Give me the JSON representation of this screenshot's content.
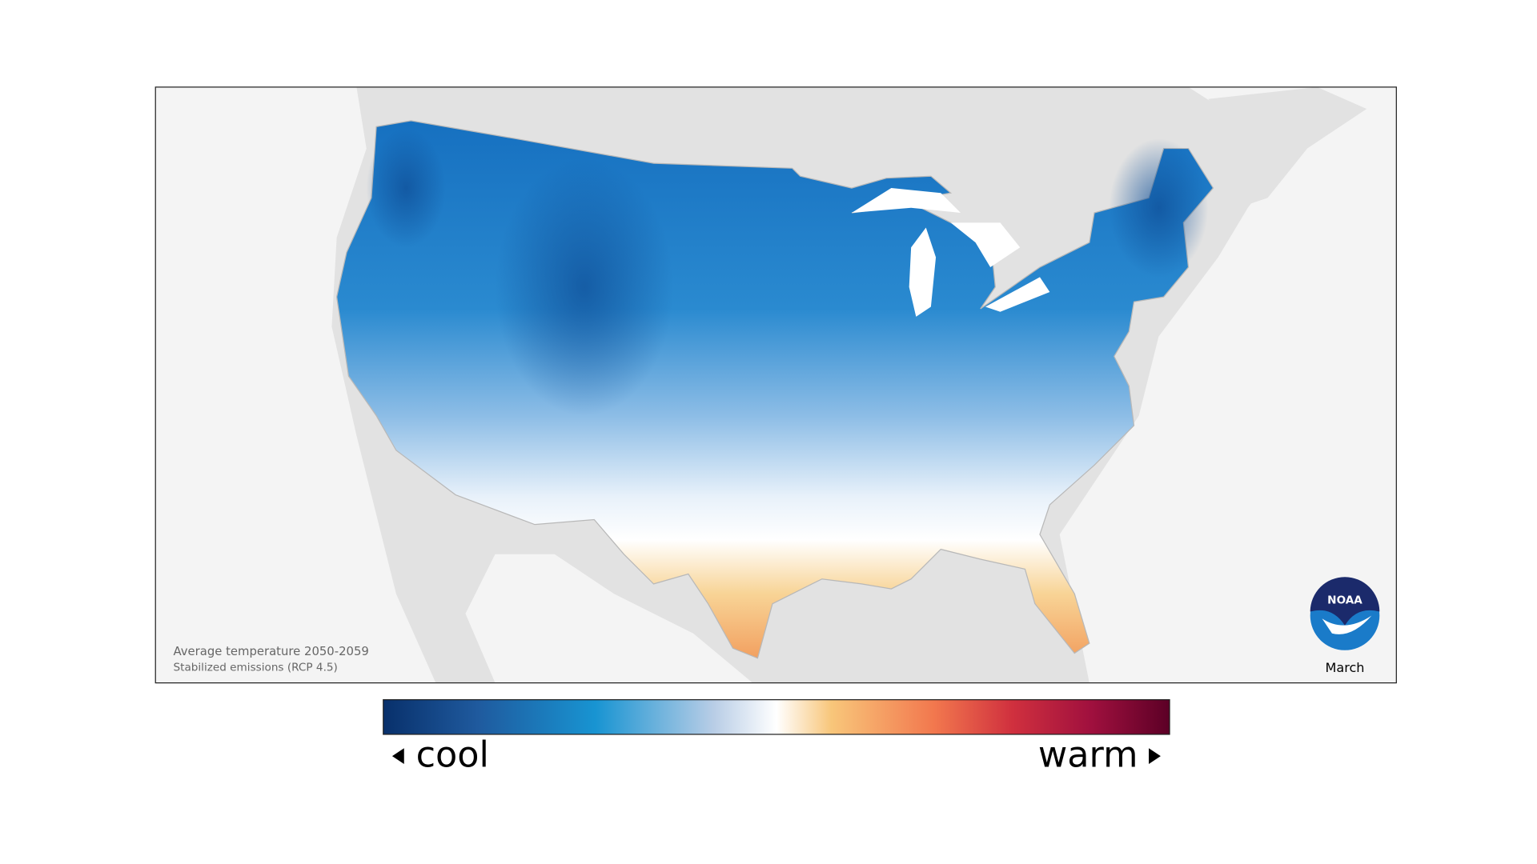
{
  "map": {
    "caption": [
      "Average temperature 2050-2059",
      "Stabilized emissions (RCP 4.5)"
    ],
    "logo": "NOAA",
    "month": "March"
  },
  "legend": {
    "low": "cool",
    "high": "warm"
  }
}
